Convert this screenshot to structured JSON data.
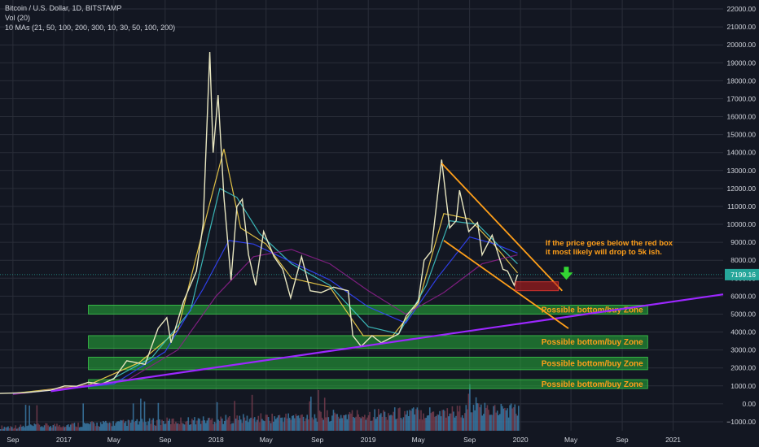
{
  "legend": {
    "symbol_line": "Bitcoin / U.S. Dollar, 1D, BITSTAMP",
    "volume_line": "Vol (20)",
    "ma_line": "10 MAs (21, 50, 100, 200, 300, 10, 30, 50, 100, 200)"
  },
  "colors": {
    "background": "#131722",
    "grid": "#2a2e39",
    "axis_text": "#d1d4dc",
    "price": "#e8e6c0",
    "trendline": "#9c27ff",
    "wedge": "#ff9f1a",
    "zone_fill": "#27ae3a",
    "zone_text": "#ff9f1a",
    "red_box": "#b71c1c",
    "arrow": "#33d633",
    "price_tag": "#26a69a"
  },
  "chart_data": {
    "type": "line",
    "title": "Bitcoin / U.S. Dollar, 1D, BITSTAMP",
    "xlabel": "",
    "ylabel": "",
    "y_ticks": [
      "22000.00",
      "21000.00",
      "20000.00",
      "19000.00",
      "18000.00",
      "17000.00",
      "16000.00",
      "15000.00",
      "14000.00",
      "13000.00",
      "12000.00",
      "11000.00",
      "10000.00",
      "9000.00",
      "8000.00",
      "7000.00",
      "6000.00",
      "5000.00",
      "4000.00",
      "3000.00",
      "2000.00",
      "1000.00",
      "0.00",
      "−1000.00"
    ],
    "ylim": [
      -1500,
      22500
    ],
    "x_ticks": [
      "Sep",
      "2017",
      "May",
      "Sep",
      "2018",
      "May",
      "Sep",
      "2019",
      "May",
      "Sep",
      "2020",
      "May",
      "Sep",
      "2021"
    ],
    "xlim": [
      "2016-08-01",
      "2021-05-01"
    ],
    "grid": true,
    "last_price": "7199.16",
    "series": [
      {
        "values": [
          [
            "2016-08-01",
            580
          ],
          [
            "2016-10-01",
            620
          ],
          [
            "2016-12-01",
            760
          ],
          [
            "2017-01-03",
            1000
          ],
          [
            "2017-02-01",
            980
          ],
          [
            "2017-03-01",
            1200
          ],
          [
            "2017-04-01",
            1100
          ],
          [
            "2017-05-01",
            1400
          ],
          [
            "2017-06-01",
            2400
          ],
          [
            "2017-07-15",
            2200
          ],
          [
            "2017-08-15",
            4200
          ],
          [
            "2017-09-05",
            4800
          ],
          [
            "2017-09-15",
            3400
          ],
          [
            "2017-10-15",
            5700
          ],
          [
            "2017-11-15",
            7400
          ],
          [
            "2017-12-01",
            10000
          ],
          [
            "2017-12-17",
            19600
          ],
          [
            "2017-12-25",
            14000
          ],
          [
            "2018-01-06",
            17200
          ],
          [
            "2018-01-20",
            11500
          ],
          [
            "2018-02-06",
            6900
          ],
          [
            "2018-02-20",
            11000
          ],
          [
            "2018-03-05",
            11400
          ],
          [
            "2018-03-20",
            8300
          ],
          [
            "2018-04-06",
            6600
          ],
          [
            "2018-04-25",
            9600
          ],
          [
            "2018-05-20",
            8200
          ],
          [
            "2018-06-10",
            7500
          ],
          [
            "2018-06-29",
            5900
          ],
          [
            "2018-07-25",
            8200
          ],
          [
            "2018-08-15",
            6300
          ],
          [
            "2018-09-10",
            6200
          ],
          [
            "2018-10-10",
            6500
          ],
          [
            "2018-11-14",
            6300
          ],
          [
            "2018-11-25",
            3800
          ],
          [
            "2018-12-15",
            3200
          ],
          [
            "2019-01-10",
            3800
          ],
          [
            "2019-02-01",
            3400
          ],
          [
            "2019-03-15",
            3900
          ],
          [
            "2019-04-02",
            4900
          ],
          [
            "2019-05-01",
            5700
          ],
          [
            "2019-05-15",
            8000
          ],
          [
            "2019-06-01",
            8500
          ],
          [
            "2019-06-26",
            13600
          ],
          [
            "2019-07-15",
            9800
          ],
          [
            "2019-07-31",
            10200
          ],
          [
            "2019-08-08",
            11900
          ],
          [
            "2019-08-30",
            9600
          ],
          [
            "2019-09-20",
            10100
          ],
          [
            "2019-10-01",
            8300
          ],
          [
            "2019-10-25",
            9400
          ],
          [
            "2019-11-20",
            7500
          ],
          [
            "2019-12-01",
            7400
          ],
          [
            "2019-12-17",
            6600
          ],
          [
            "2019-12-25",
            7199
          ]
        ]
      },
      {
        "values": [
          [
            "2016-09-01",
            580
          ],
          [
            "2017-03-01",
            1050
          ],
          [
            "2017-07-01",
            2300
          ],
          [
            "2017-10-01",
            4100
          ],
          [
            "2017-12-15",
            11000
          ],
          [
            "2018-01-20",
            14200
          ],
          [
            "2018-03-01",
            9800
          ],
          [
            "2018-05-01",
            8900
          ],
          [
            "2018-07-01",
            7000
          ],
          [
            "2018-10-01",
            6500
          ],
          [
            "2018-12-20",
            3800
          ],
          [
            "2019-03-01",
            3800
          ],
          [
            "2019-05-01",
            5600
          ],
          [
            "2019-07-01",
            10600
          ],
          [
            "2019-09-01",
            10300
          ],
          [
            "2019-11-01",
            8800
          ],
          [
            "2019-12-25",
            7300
          ]
        ]
      },
      {
        "values": [
          [
            "2016-09-01",
            560
          ],
          [
            "2017-04-01",
            1050
          ],
          [
            "2017-08-01",
            2600
          ],
          [
            "2017-11-01",
            5200
          ],
          [
            "2018-01-10",
            12000
          ],
          [
            "2018-02-20",
            11500
          ],
          [
            "2018-04-15",
            9500
          ],
          [
            "2018-07-01",
            7800
          ],
          [
            "2018-10-01",
            6600
          ],
          [
            "2019-01-01",
            4300
          ],
          [
            "2019-03-15",
            3900
          ],
          [
            "2019-05-20",
            6600
          ],
          [
            "2019-07-15",
            10200
          ],
          [
            "2019-09-20",
            10000
          ],
          [
            "2019-11-15",
            8700
          ],
          [
            "2019-12-25",
            7800
          ]
        ]
      },
      {
        "values": [
          [
            "2016-09-01",
            540
          ],
          [
            "2017-05-01",
            1100
          ],
          [
            "2017-09-01",
            2900
          ],
          [
            "2017-12-01",
            6400
          ],
          [
            "2018-02-01",
            9100
          ],
          [
            "2018-04-01",
            8900
          ],
          [
            "2018-07-01",
            7900
          ],
          [
            "2018-10-01",
            6900
          ],
          [
            "2019-01-01",
            5400
          ],
          [
            "2019-04-01",
            4500
          ],
          [
            "2019-06-15",
            7000
          ],
          [
            "2019-09-01",
            9300
          ],
          [
            "2019-11-01",
            8900
          ],
          [
            "2019-12-25",
            8400
          ]
        ]
      },
      {
        "values": [
          [
            "2016-09-01",
            520
          ],
          [
            "2017-06-01",
            1300
          ],
          [
            "2017-10-01",
            3000
          ],
          [
            "2018-01-01",
            6000
          ],
          [
            "2018-04-01",
            8200
          ],
          [
            "2018-07-01",
            8600
          ],
          [
            "2018-10-01",
            7800
          ],
          [
            "2019-01-01",
            6300
          ],
          [
            "2019-04-01",
            5000
          ],
          [
            "2019-07-01",
            6200
          ],
          [
            "2019-10-01",
            7800
          ],
          [
            "2019-12-25",
            8300
          ]
        ]
      }
    ],
    "drawings": {
      "trendline": [
        [
          "2016-12-01",
          700
        ],
        [
          "2021-05-01",
          6100
        ]
      ],
      "wedge_upper": [
        [
          "2019-06-26",
          13400
        ],
        [
          "2020-04-10",
          6300
        ]
      ],
      "wedge_lower": [
        [
          "2019-07-01",
          9100
        ],
        [
          "2020-04-25",
          4200
        ]
      ],
      "red_box": {
        "from": "2019-12-20",
        "to": "2020-04-01",
        "low": 6300,
        "high": 6800
      },
      "arrow_at": [
        "2020-04-20",
        7000
      ]
    },
    "zones": [
      {
        "from": "2017-03-01",
        "to": "2020-11-01",
        "low": 5000,
        "high": 5500,
        "label": "Possible bottom/buy Zone"
      },
      {
        "from": "2017-03-01",
        "to": "2020-11-01",
        "low": 3100,
        "high": 3800,
        "label": "Possible bottom/buy Zone"
      },
      {
        "from": "2017-03-01",
        "to": "2020-11-01",
        "low": 1900,
        "high": 2600,
        "label": "Possible bottom/buy Zone"
      },
      {
        "from": "2017-03-01",
        "to": "2020-11-01",
        "low": 850,
        "high": 1350,
        "label": "Possible bottom/buy Zone"
      }
    ],
    "annotations": [
      "If the price goes below the red box",
      "it most likely will drop to 5k ish."
    ]
  }
}
